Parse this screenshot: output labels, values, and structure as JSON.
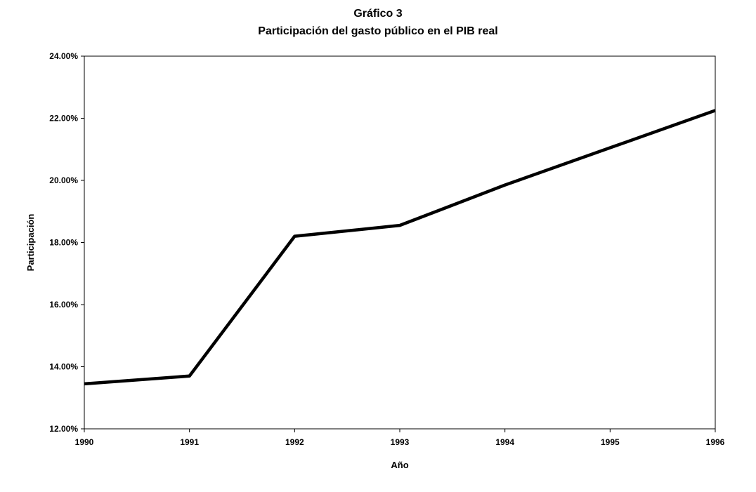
{
  "chart_data": {
    "type": "line",
    "title": "Gráfico 3",
    "subtitle": "Participación del gasto público en el PIB real",
    "xlabel": "Año",
    "ylabel": "Participación",
    "x": [
      1990,
      1991,
      1992,
      1993,
      1994,
      1995,
      1996
    ],
    "x_tick_labels": [
      "1990",
      "1991",
      "1992",
      "1993",
      "1994",
      "1995",
      "1996"
    ],
    "series": [
      {
        "values": [
          13.45,
          13.7,
          18.2,
          18.55,
          19.85,
          21.05,
          22.25
        ]
      }
    ],
    "xlim": [
      1990,
      1996
    ],
    "ylim": [
      12,
      24
    ],
    "y_ticks": [
      12,
      14,
      16,
      18,
      20,
      22,
      24
    ],
    "y_tick_labels": [
      "12.00%",
      "14.00%",
      "16.00%",
      "18.00%",
      "20.00%",
      "22.00%",
      "24.00%"
    ],
    "grid": false,
    "legend": "none",
    "line_color": "#000000"
  }
}
